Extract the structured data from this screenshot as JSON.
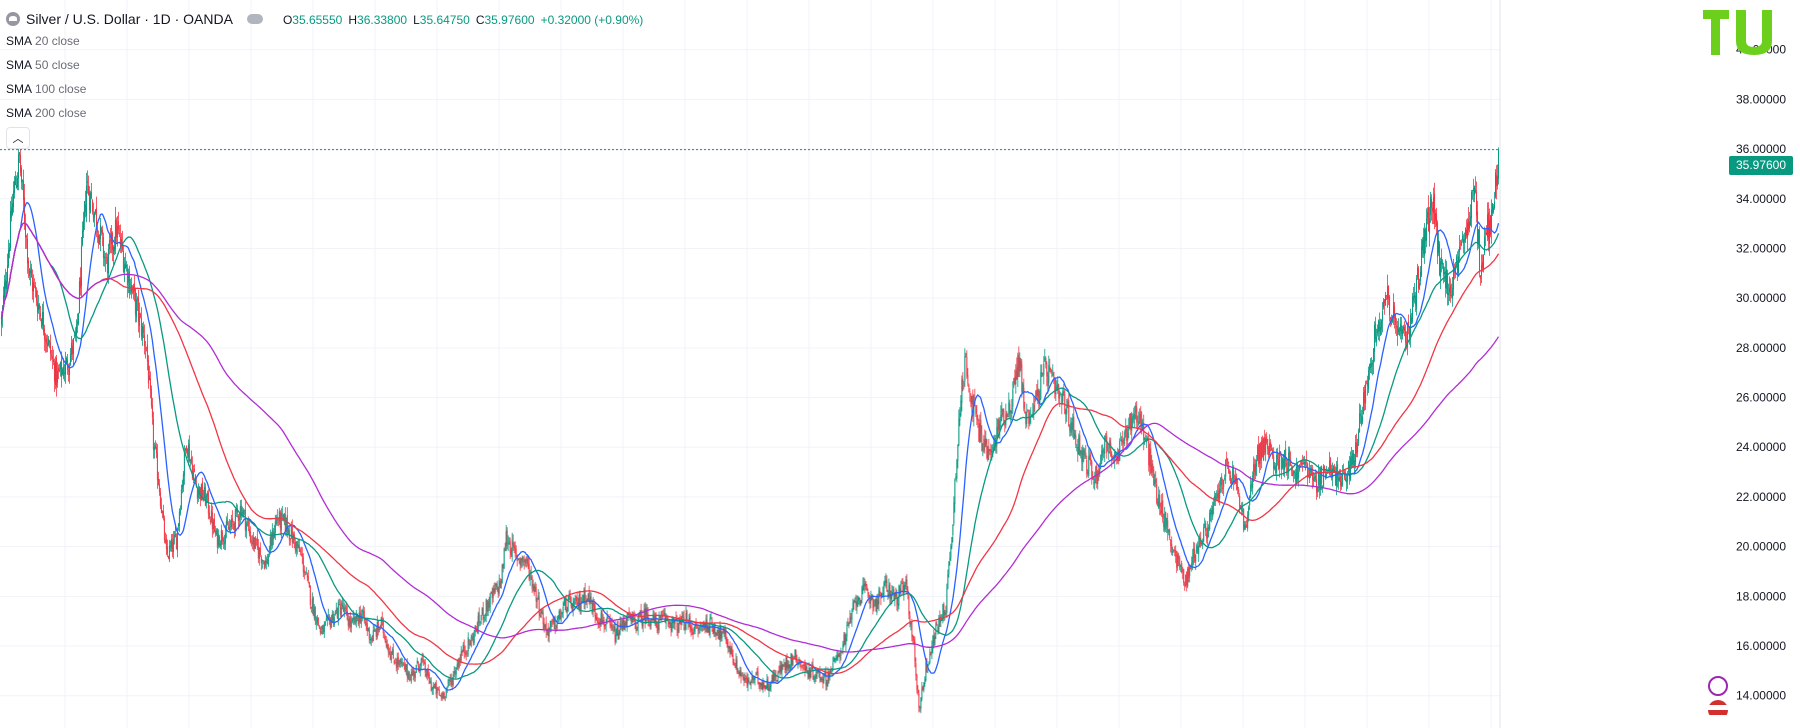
{
  "header": {
    "title": "Silver / U.S. Dollar · 1D · OANDA",
    "ohlc": [
      {
        "key": "O",
        "value": "35.65550"
      },
      {
        "key": "H",
        "value": "36.33800"
      },
      {
        "key": "L",
        "value": "35.64750"
      },
      {
        "key": "C",
        "value": "35.97600"
      },
      {
        "key": "",
        "value": "+0.32000 (+0.90%)"
      }
    ]
  },
  "indicators": [
    {
      "name": "SMA",
      "params": "20 close",
      "color": "#2962ff"
    },
    {
      "name": "SMA",
      "params": "50 close",
      "color": "#089981"
    },
    {
      "name": "SMA",
      "params": "100 close",
      "color": "#f23645"
    },
    {
      "name": "SMA",
      "params": "200 close",
      "color": "#b22cd6"
    }
  ],
  "last_price": "35.97600",
  "colors": {
    "up": "#089981",
    "down": "#f23645",
    "grid": "#f0f3fa",
    "axis_text": "#131722"
  },
  "chart_data": {
    "type": "candlestick",
    "title": "Silver / U.S. Dollar · 1D · OANDA",
    "y_axis_side": "right",
    "ylim": [
      12.7,
      42.0
    ],
    "y_ticks": [
      "40.00000",
      "38.00000",
      "36.00000",
      "34.00000",
      "32.00000",
      "30.00000",
      "28.00000",
      "26.00000",
      "24.00000",
      "22.00000",
      "20.00000",
      "18.00000",
      "16.00000",
      "14.00000"
    ],
    "last_price": 35.976,
    "price_path": [
      [
        0,
        29.0
      ],
      [
        12,
        34.2
      ],
      [
        18,
        35.6
      ],
      [
        28,
        31.0
      ],
      [
        40,
        29.3
      ],
      [
        55,
        26.8
      ],
      [
        65,
        27.3
      ],
      [
        75,
        28.4
      ],
      [
        85,
        34.6
      ],
      [
        95,
        33.2
      ],
      [
        105,
        31.3
      ],
      [
        115,
        32.8
      ],
      [
        125,
        31.2
      ],
      [
        135,
        29.6
      ],
      [
        145,
        28.0
      ],
      [
        152,
        24.2
      ],
      [
        158,
        22.4
      ],
      [
        165,
        19.6
      ],
      [
        175,
        20.3
      ],
      [
        185,
        24.3
      ],
      [
        195,
        22.4
      ],
      [
        205,
        21.9
      ],
      [
        215,
        20.3
      ],
      [
        230,
        20.8
      ],
      [
        240,
        21.6
      ],
      [
        250,
        20.3
      ],
      [
        265,
        19.3
      ],
      [
        275,
        21.1
      ],
      [
        285,
        20.9
      ],
      [
        300,
        19.6
      ],
      [
        310,
        17.8
      ],
      [
        320,
        16.5
      ],
      [
        330,
        17.1
      ],
      [
        340,
        17.6
      ],
      [
        350,
        16.8
      ],
      [
        360,
        17.3
      ],
      [
        370,
        16.3
      ],
      [
        380,
        16.9
      ],
      [
        390,
        15.6
      ],
      [
        400,
        15.2
      ],
      [
        410,
        14.8
      ],
      [
        420,
        15.4
      ],
      [
        430,
        14.4
      ],
      [
        440,
        13.95
      ],
      [
        450,
        14.6
      ],
      [
        460,
        15.7
      ],
      [
        470,
        16.2
      ],
      [
        480,
        17.2
      ],
      [
        490,
        17.9
      ],
      [
        500,
        18.6
      ],
      [
        505,
        20.4
      ],
      [
        515,
        19.6
      ],
      [
        525,
        19.4
      ],
      [
        535,
        18.1
      ],
      [
        545,
        16.6
      ],
      [
        555,
        16.9
      ],
      [
        565,
        17.7
      ],
      [
        575,
        17.6
      ],
      [
        585,
        18.1
      ],
      [
        595,
        17.3
      ],
      [
        605,
        16.9
      ],
      [
        615,
        16.4
      ],
      [
        625,
        17.1
      ],
      [
        635,
        16.9
      ],
      [
        645,
        17.3
      ],
      [
        655,
        16.9
      ],
      [
        665,
        17.1
      ],
      [
        675,
        16.8
      ],
      [
        685,
        17.0
      ],
      [
        695,
        16.6
      ],
      [
        705,
        16.9
      ],
      [
        715,
        16.7
      ],
      [
        725,
        16.3
      ],
      [
        735,
        15.2
      ],
      [
        745,
        14.5
      ],
      [
        755,
        14.7
      ],
      [
        765,
        14.4
      ],
      [
        775,
        14.8
      ],
      [
        785,
        15.3
      ],
      [
        795,
        15.6
      ],
      [
        805,
        15.0
      ],
      [
        815,
        14.9
      ],
      [
        825,
        14.7
      ],
      [
        835,
        15.4
      ],
      [
        845,
        16.4
      ],
      [
        855,
        17.9
      ],
      [
        865,
        18.2
      ],
      [
        875,
        17.7
      ],
      [
        885,
        18.4
      ],
      [
        895,
        17.9
      ],
      [
        905,
        18.4
      ],
      [
        912,
        16.3
      ],
      [
        918,
        13.5
      ],
      [
        925,
        15.1
      ],
      [
        935,
        16.6
      ],
      [
        945,
        17.7
      ],
      [
        952,
        21.1
      ],
      [
        958,
        25.2
      ],
      [
        965,
        27.6
      ],
      [
        972,
        25.6
      ],
      [
        980,
        24.4
      ],
      [
        990,
        23.6
      ],
      [
        1000,
        25.2
      ],
      [
        1010,
        25.7
      ],
      [
        1018,
        27.6
      ],
      [
        1025,
        25.1
      ],
      [
        1035,
        25.9
      ],
      [
        1045,
        27.2
      ],
      [
        1055,
        26.2
      ],
      [
        1065,
        25.6
      ],
      [
        1075,
        24.4
      ],
      [
        1085,
        23.4
      ],
      [
        1095,
        22.8
      ],
      [
        1105,
        24.3
      ],
      [
        1115,
        23.3
      ],
      [
        1125,
        24.6
      ],
      [
        1135,
        25.5
      ],
      [
        1145,
        24.3
      ],
      [
        1155,
        22.3
      ],
      [
        1165,
        20.9
      ],
      [
        1175,
        19.6
      ],
      [
        1185,
        18.6
      ],
      [
        1195,
        19.9
      ],
      [
        1205,
        20.6
      ],
      [
        1215,
        21.8
      ],
      [
        1225,
        23.1
      ],
      [
        1235,
        22.6
      ],
      [
        1245,
        20.6
      ],
      [
        1255,
        23.6
      ],
      [
        1265,
        24.1
      ],
      [
        1275,
        23.4
      ],
      [
        1285,
        23.6
      ],
      [
        1295,
        22.9
      ],
      [
        1305,
        23.4
      ],
      [
        1315,
        22.4
      ],
      [
        1325,
        23.1
      ],
      [
        1335,
        22.9
      ],
      [
        1345,
        22.6
      ],
      [
        1355,
        23.9
      ],
      [
        1365,
        26.4
      ],
      [
        1375,
        28.6
      ],
      [
        1385,
        30.1
      ],
      [
        1395,
        29.1
      ],
      [
        1405,
        28.1
      ],
      [
        1415,
        30.3
      ],
      [
        1425,
        32.6
      ],
      [
        1432,
        33.9
      ],
      [
        1440,
        31.1
      ],
      [
        1450,
        30.4
      ],
      [
        1460,
        31.6
      ],
      [
        1470,
        33.6
      ],
      [
        1475,
        33.9
      ],
      [
        1480,
        31.1
      ],
      [
        1485,
        32.6
      ],
      [
        1490,
        33.1
      ],
      [
        1495,
        34.6
      ],
      [
        1498,
        35.97
      ]
    ]
  }
}
